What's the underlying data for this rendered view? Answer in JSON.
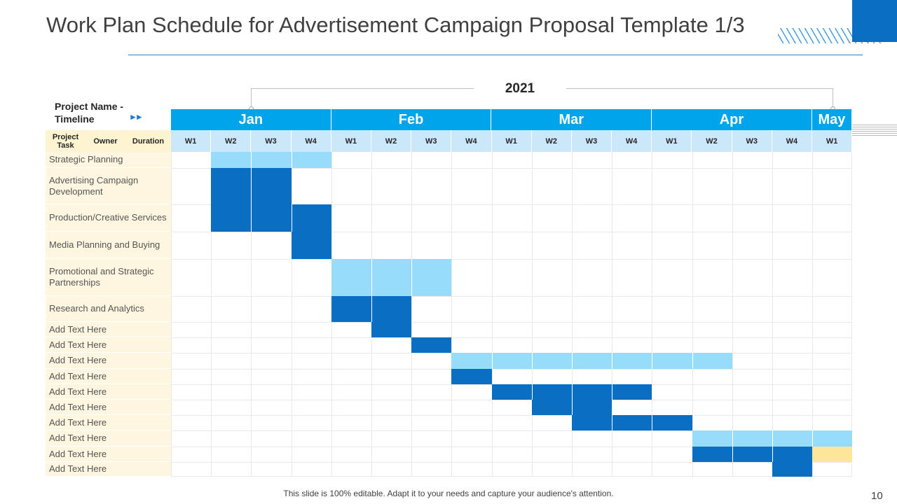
{
  "slide": {
    "title": "Work Plan Schedule for Advertisement Campaign Proposal Template 1/3",
    "year": "2021",
    "project_name": "Project Name -\nTimeline",
    "arrows": "►►",
    "footer": "This slide is 100% editable. Adapt it to your needs and capture your audience's attention.",
    "page_number": "10"
  },
  "colors": {
    "month_header": "#00a4ea",
    "week_header": "#cbe8fb",
    "task_column": "#fef6e0",
    "bar_light": "#98dcfb",
    "bar_dark": "#0a6fc2",
    "bar_yellow": "#fde59a"
  },
  "table_header": {
    "project_task": "Project Task",
    "owner": "Owner",
    "duration": "Duration"
  },
  "months": [
    {
      "label": "Jan",
      "weeks": 4
    },
    {
      "label": "Feb",
      "weeks": 4
    },
    {
      "label": "Mar",
      "weeks": 4
    },
    {
      "label": "Apr",
      "weeks": 4
    },
    {
      "label": "May",
      "weeks": 1
    }
  ],
  "weeks": [
    "W1",
    "W2",
    "W3",
    "W4",
    "W1",
    "W2",
    "W3",
    "W4",
    "W1",
    "W2",
    "W3",
    "W4",
    "W1",
    "W2",
    "W3",
    "W4",
    "W1"
  ],
  "tasks": [
    {
      "name": "Strategic Planning",
      "bars": [
        {
          "start": 1,
          "span": 3,
          "color": "light"
        }
      ]
    },
    {
      "name": "Advertising Campaign Development",
      "bars": [
        {
          "start": 1,
          "span": 2,
          "color": "dark"
        }
      ]
    },
    {
      "name": "Production/Creative Services",
      "bars": [
        {
          "start": 1,
          "span": 3,
          "color": "dark"
        }
      ]
    },
    {
      "name": "Media Planning and Buying",
      "bars": [
        {
          "start": 3,
          "span": 1,
          "color": "dark"
        }
      ]
    },
    {
      "name": "Promotional and Strategic Partnerships",
      "bars": [
        {
          "start": 4,
          "span": 3,
          "color": "light"
        }
      ]
    },
    {
      "name": "Research and Analytics",
      "bars": [
        {
          "start": 4,
          "span": 2,
          "color": "dark"
        }
      ]
    },
    {
      "name": "Add Text Here",
      "bars": [
        {
          "start": 5,
          "span": 1,
          "color": "dark"
        }
      ]
    },
    {
      "name": "Add Text Here",
      "bars": [
        {
          "start": 6,
          "span": 1,
          "color": "dark"
        }
      ]
    },
    {
      "name": "Add Text Here",
      "bars": [
        {
          "start": 7,
          "span": 7,
          "color": "light"
        }
      ]
    },
    {
      "name": "Add Text Here",
      "bars": [
        {
          "start": 7,
          "span": 1,
          "color": "dark"
        }
      ]
    },
    {
      "name": "Add Text Here",
      "bars": [
        {
          "start": 8,
          "span": 4,
          "color": "dark"
        }
      ]
    },
    {
      "name": "Add Text Here",
      "bars": [
        {
          "start": 9,
          "span": 2,
          "color": "dark"
        }
      ]
    },
    {
      "name": "Add Text Here",
      "bars": [
        {
          "start": 10,
          "span": 3,
          "color": "dark"
        }
      ]
    },
    {
      "name": "Add Text Here",
      "bars": [
        {
          "start": 13,
          "span": 4,
          "color": "light"
        }
      ]
    },
    {
      "name": "Add Text Here",
      "bars": [
        {
          "start": 13,
          "span": 3,
          "color": "dark"
        },
        {
          "start": 16,
          "span": 1,
          "color": "yellow"
        }
      ]
    },
    {
      "name": "Add Text Here",
      "bars": [
        {
          "start": 15,
          "span": 1,
          "color": "dark"
        }
      ]
    }
  ]
}
